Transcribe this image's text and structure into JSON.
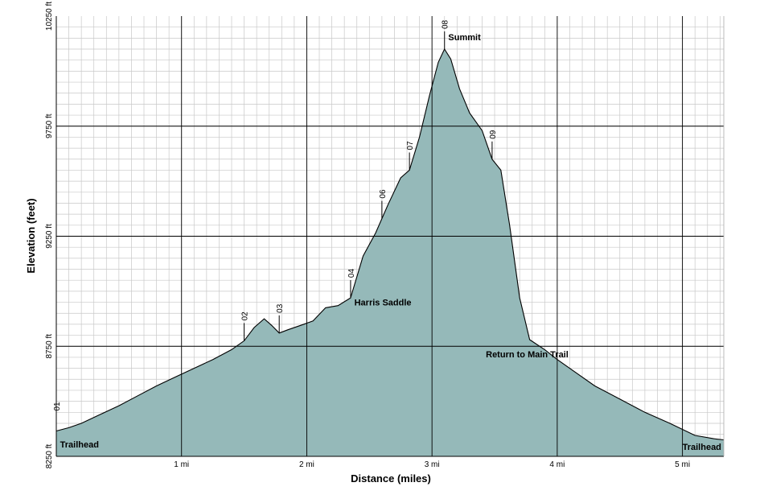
{
  "chart_data": {
    "type": "area",
    "xlabel": "Distance (miles)",
    "ylabel": "Elevation (feet)",
    "xlim": [
      0,
      5.33
    ],
    "ylim": [
      8250,
      10250
    ],
    "x_ticks": [
      {
        "value": 1,
        "label": "1 mi"
      },
      {
        "value": 2,
        "label": "2 mi"
      },
      {
        "value": 3,
        "label": "3 mi"
      },
      {
        "value": 4,
        "label": "4 mi"
      },
      {
        "value": 5,
        "label": "5 mi"
      }
    ],
    "y_ticks": [
      {
        "value": 8250,
        "label": "8250 ft"
      },
      {
        "value": 8750,
        "label": "8750 ft"
      },
      {
        "value": 9250,
        "label": "9250 ft"
      },
      {
        "value": 9750,
        "label": "9750 ft"
      },
      {
        "value": 10250,
        "label": "10250 ft"
      }
    ],
    "grid": true,
    "fill_color": "#95b9b9",
    "series": [
      {
        "x": [
          0,
          0.1,
          0.2,
          0.35,
          0.5,
          0.65,
          0.8,
          0.95,
          1.1,
          1.25,
          1.4,
          1.5,
          1.58,
          1.66,
          1.72,
          1.78,
          1.85,
          1.95,
          2.05,
          2.15,
          2.25,
          2.35,
          2.45,
          2.55,
          2.65,
          2.75,
          2.82,
          2.9,
          2.98,
          3.05,
          3.1,
          3.15,
          3.22,
          3.3,
          3.4,
          3.48,
          3.55,
          3.62,
          3.7,
          3.78,
          3.9,
          4.0,
          4.15,
          4.3,
          4.5,
          4.7,
          4.9,
          5.1,
          5.25,
          5.33
        ],
        "y": [
          8365,
          8380,
          8400,
          8440,
          8480,
          8525,
          8570,
          8610,
          8650,
          8690,
          8735,
          8775,
          8835,
          8875,
          8845,
          8810,
          8825,
          8845,
          8865,
          8925,
          8935,
          8970,
          9160,
          9265,
          9395,
          9515,
          9550,
          9700,
          9890,
          10040,
          10100,
          10055,
          9920,
          9810,
          9730,
          9600,
          9550,
          9300,
          8970,
          8780,
          8735,
          8690,
          8630,
          8570,
          8510,
          8450,
          8400,
          8345,
          8330,
          8325
        ]
      }
    ],
    "waypoints": [
      {
        "label": "01",
        "x": 0.0,
        "y": 8365
      },
      {
        "label": "02",
        "x": 1.5,
        "y": 8775
      },
      {
        "label": "03",
        "x": 1.78,
        "y": 8810
      },
      {
        "label": "04",
        "x": 2.35,
        "y": 8970
      },
      {
        "label": "06",
        "x": 2.6,
        "y": 9330
      },
      {
        "label": "07",
        "x": 2.82,
        "y": 9550
      },
      {
        "label": "08",
        "x": 3.1,
        "y": 10100
      },
      {
        "label": "09",
        "x": 3.48,
        "y": 9600
      }
    ],
    "annotations": [
      {
        "text": "Trailhead",
        "x": 0.03,
        "y": 8290
      },
      {
        "text": "Harris Saddle",
        "x": 2.38,
        "y": 8935
      },
      {
        "text": "Summit",
        "x": 3.13,
        "y": 10140
      },
      {
        "text": "Return to Main Trail",
        "x": 3.43,
        "y": 8700
      },
      {
        "text": "Trailhead",
        "x": 5.0,
        "y": 8280
      }
    ]
  }
}
